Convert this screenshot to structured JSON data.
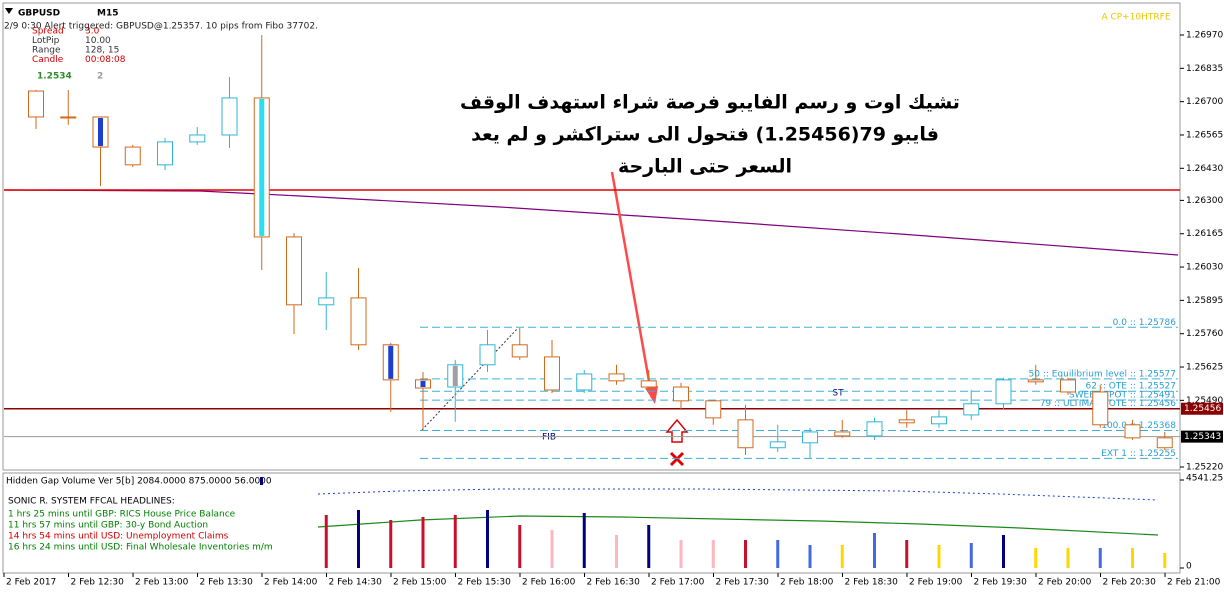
{
  "header": {
    "symbol": "GBPUSD",
    "timeframe": "M15",
    "alert": "2/9 0:30 Alert triggered: GBPUSD@1.25357. 10 pips from Fibo 37702.",
    "corner_tag": "A CP+10HTRFE"
  },
  "info": {
    "rows": [
      {
        "label": "Spread",
        "value": "3.0",
        "color": "#d00000"
      },
      {
        "label": "LotPip",
        "value": "10.00",
        "color": "#333333"
      },
      {
        "label": "Range",
        "value": "128, 15",
        "color": "#333333"
      },
      {
        "label": "Candle",
        "value": "00:08:08",
        "color": "#d00000"
      }
    ],
    "price_main": "1.2534",
    "price_last": "2"
  },
  "annotation": {
    "lines": [
      "تشيك اوت و رسم الفايبو فرصة شراء استهدف الوقف",
      "فايبو 79(1.25456) فتحول الى ستراكشر و لم يعد",
      "السعر حتى البارحة"
    ],
    "st": "ST",
    "fib": "FIB"
  },
  "price_axis": {
    "ylim": [
      1.2522,
      1.2697
    ],
    "ticks": [
      {
        "value": 1.2697,
        "label": "1.26970"
      },
      {
        "value": 1.26835,
        "label": "1.26835"
      },
      {
        "value": 1.267,
        "label": "1.26700"
      },
      {
        "value": 1.26565,
        "label": "1.26565"
      },
      {
        "value": 1.2643,
        "label": "1.26430"
      },
      {
        "value": 1.263,
        "label": "1.26300"
      },
      {
        "value": 1.26165,
        "label": "1.26165"
      },
      {
        "value": 1.2603,
        "label": "1.26030"
      },
      {
        "value": 1.25895,
        "label": "1.25895"
      },
      {
        "value": 1.2576,
        "label": "1.25760"
      },
      {
        "value": 1.25625,
        "label": "1.25625"
      },
      {
        "value": 1.2549,
        "label": "1.25490"
      },
      {
        "value": 1.2522,
        "label": "1.25220"
      }
    ]
  },
  "horizontal_lines": [
    {
      "price": 1.26342,
      "color": "#e00000"
    },
    {
      "price": 1.25456,
      "label": "1.25456",
      "color": "#8b0000"
    },
    {
      "price": 1.25343,
      "label": "1.25343",
      "color": "#9a9a9a"
    }
  ],
  "fib_levels": [
    {
      "price": 1.25786,
      "label": "0.0 :: 1.25786"
    },
    {
      "price": 1.25577,
      "label": "50 :: Equilibrium level :: 1.25577"
    },
    {
      "price": 1.25527,
      "label": "62 :: OTE :: 1.25527"
    },
    {
      "price": 1.25491,
      "label": "SWEET SPOT :: 1.25491"
    },
    {
      "price": 1.25456,
      "label": "79 :: ULTIMATE OTE :: 1.25456"
    },
    {
      "price": 1.25368,
      "label": "100.0 :: 1.25368"
    },
    {
      "price": 1.25255,
      "label": "EXT 1 :: 1.25255"
    }
  ],
  "candles": {
    "bull_color": "#2fb5d6",
    "bear_color": "#d2691e",
    "items": [
      {
        "open": 1.26743,
        "high": 1.26747,
        "low": 1.26589,
        "close": 1.26638
      },
      {
        "open": 1.26638,
        "high": 1.26747,
        "low": 1.26606,
        "close": 1.26638
      },
      {
        "open": 1.26638,
        "high": 1.26638,
        "low": 1.26358,
        "close": 1.26516,
        "body_fill": "#1f3fd0"
      },
      {
        "open": 1.26516,
        "high": 1.26525,
        "low": 1.26435,
        "close": 1.26444
      },
      {
        "open": 1.26444,
        "high": 1.26553,
        "low": 1.26423,
        "close": 1.26537
      },
      {
        "open": 1.26537,
        "high": 1.26597,
        "low": 1.26525,
        "close": 1.26565
      },
      {
        "open": 1.26565,
        "high": 1.268,
        "low": 1.26512,
        "close": 1.26715
      },
      {
        "open": 1.26715,
        "high": 1.2697,
        "low": 1.26018,
        "close": 1.26152,
        "body_fill": "#26e0f0"
      },
      {
        "open": 1.26152,
        "high": 1.26168,
        "low": 1.25759,
        "close": 1.25877
      },
      {
        "open": 1.25877,
        "high": 1.2601,
        "low": 1.25775,
        "close": 1.25905
      },
      {
        "open": 1.25905,
        "high": 1.26026,
        "low": 1.25694,
        "close": 1.25715
      },
      {
        "open": 1.25715,
        "high": 1.25723,
        "low": 1.25443,
        "close": 1.25573,
        "body_fill": "#1f3fd0"
      },
      {
        "open": 1.25573,
        "high": 1.25605,
        "low": 1.2537,
        "close": 1.2554,
        "body_fill": "#1f3fd0"
      },
      {
        "open": 1.25544,
        "high": 1.25654,
        "low": 1.25403,
        "close": 1.25634,
        "body_fill": "#a0a0a0"
      },
      {
        "open": 1.25634,
        "high": 1.25775,
        "low": 1.25605,
        "close": 1.25715
      },
      {
        "open": 1.25715,
        "high": 1.25783,
        "low": 1.25654,
        "close": 1.25666
      },
      {
        "open": 1.25666,
        "high": 1.25735,
        "low": 1.2552,
        "close": 1.25532
      },
      {
        "open": 1.25532,
        "high": 1.25613,
        "low": 1.2552,
        "close": 1.25597
      },
      {
        "open": 1.25597,
        "high": 1.25634,
        "low": 1.25553,
        "close": 1.25569
      },
      {
        "open": 1.25569,
        "high": 1.25613,
        "low": 1.25532,
        "close": 1.25544
      },
      {
        "open": 1.25544,
        "high": 1.25561,
        "low": 1.25451,
        "close": 1.25488
      },
      {
        "open": 1.25488,
        "high": 1.25492,
        "low": 1.25391,
        "close": 1.25419
      },
      {
        "open": 1.25411,
        "high": 1.25472,
        "low": 1.25269,
        "close": 1.25298
      },
      {
        "open": 1.25298,
        "high": 1.25391,
        "low": 1.25281,
        "close": 1.25322
      },
      {
        "open": 1.25318,
        "high": 1.25379,
        "low": 1.25257,
        "close": 1.25362
      },
      {
        "open": 1.25362,
        "high": 1.25411,
        "low": 1.25338,
        "close": 1.25346
      },
      {
        "open": 1.25346,
        "high": 1.25419,
        "low": 1.2533,
        "close": 1.25403
      },
      {
        "open": 1.25411,
        "high": 1.25451,
        "low": 1.25379,
        "close": 1.25399
      },
      {
        "open": 1.25395,
        "high": 1.25451,
        "low": 1.25379,
        "close": 1.25423
      },
      {
        "open": 1.25431,
        "high": 1.25532,
        "low": 1.25411,
        "close": 1.25476
      },
      {
        "open": 1.25476,
        "high": 1.25581,
        "low": 1.25451,
        "close": 1.25573
      },
      {
        "open": 1.25573,
        "high": 1.25634,
        "low": 1.25553,
        "close": 1.25565
      },
      {
        "open": 1.25573,
        "high": 1.25581,
        "low": 1.25512,
        "close": 1.25524
      },
      {
        "open": 1.25524,
        "high": 1.25553,
        "low": 1.25379,
        "close": 1.25391
      },
      {
        "open": 1.25391,
        "high": 1.25411,
        "low": 1.2533,
        "close": 1.25338
      },
      {
        "open": 1.25338,
        "high": 1.25362,
        "low": 1.25289,
        "close": 1.25298
      }
    ]
  },
  "volume": {
    "title": "Hidden Gap Volume Ver 5[b] 2084.0000 875.0000 56.0000",
    "ylim": [
      0,
      4541.25
    ],
    "yticks": [
      0,
      4541.25
    ],
    "values": [
      null,
      null,
      null,
      null,
      null,
      null,
      null,
      null,
      null,
      2735,
      2993,
      2477,
      2632,
      2735,
      2993,
      2219,
      1961,
      2838,
      1703,
      2219,
      1445,
      1445,
      1445,
      1445,
      1187,
      1187,
      1806,
      1445,
      1187,
      1290,
      1703,
      1032,
      1032,
      1032,
      1032,
      774
    ],
    "colors": [
      null,
      null,
      null,
      null,
      null,
      null,
      null,
      null,
      null,
      "#c8102e",
      "#000080",
      "#c8102e",
      "#c8102e",
      "#c8102e",
      "#000080",
      "#c8102e",
      "#ffb6c1",
      "#000080",
      "#ffb6c1",
      "#000080",
      "#ffb6c1",
      "#ffb6c1",
      "#c8102e",
      "#4169e1",
      "#4169e1",
      "#ffd700",
      "#4169e1",
      "#c8102e",
      "#ffd700",
      "#4169e1",
      "#000080",
      "#ffd700",
      "#ffd700",
      "#4169e1",
      "#ffd700",
      "#ffd700"
    ]
  },
  "headlines": {
    "title": "SONIC R. SYSTEM  FFCAL HEADLINES:",
    "items": [
      {
        "text": "1 hrs 25 mins until GBP: RICS House Price Balance",
        "color": "#008000"
      },
      {
        "text": "11 hrs 57 mins until GBP: 30-y Bond Auction",
        "color": "#008000"
      },
      {
        "text": "14 hrs 54 mins until USD: Unemployment Claims",
        "color": "#d00000"
      },
      {
        "text": "16 hrs 24 mins until USD: Final Wholesale Inventories m/m",
        "color": "#008000"
      }
    ]
  },
  "time_axis": [
    "2 Feb 2017",
    "2 Feb 12:30",
    "2 Feb 13:00",
    "2 Feb 13:30",
    "2 Feb 14:00",
    "2 Feb 14:30",
    "2 Feb 15:00",
    "2 Feb 15:30",
    "2 Feb 16:00",
    "2 Feb 16:30",
    "2 Feb 17:00",
    "2 Feb 17:30",
    "2 Feb 18:00",
    "2 Feb 18:30",
    "2 Feb 19:00",
    "2 Feb 19:30",
    "2 Feb 20:00",
    "2 Feb 20:30",
    "2 Feb 21:00"
  ]
}
